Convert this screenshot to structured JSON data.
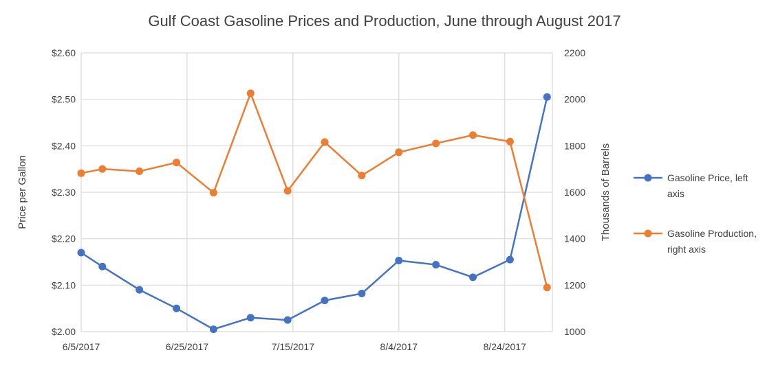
{
  "chart_data": {
    "type": "line",
    "title": "Gulf Coast Gasoline Prices and Production, June through August 2017",
    "x_tick_labels": [
      "6/5/2017",
      "6/25/2017",
      "7/15/2017",
      "8/4/2017",
      "8/24/2017"
    ],
    "x_range_days": [
      0,
      89
    ],
    "left_axis": {
      "label": "Price per Gallon",
      "range": [
        2.0,
        2.6
      ],
      "tick_labels": [
        "$2.00",
        "$2.10",
        "$2.20",
        "$2.30",
        "$2.40",
        "$2.50",
        "$2.60"
      ],
      "tick_values": [
        2.0,
        2.1,
        2.2,
        2.3,
        2.4,
        2.5,
        2.6
      ]
    },
    "right_axis": {
      "label": "Thousands of Barrels",
      "range": [
        1000,
        2200
      ],
      "tick_labels": [
        "1000",
        "1200",
        "1400",
        "1600",
        "1800",
        "2000",
        "2200"
      ],
      "tick_values": [
        1000,
        1200,
        1400,
        1600,
        1800,
        2000,
        2200
      ]
    },
    "x_dates": [
      "6/5/2017",
      "6/9/2017",
      "6/16/2017",
      "6/23/2017",
      "6/30/2017",
      "7/7/2017",
      "7/14/2017",
      "7/21/2017",
      "7/28/2017",
      "8/4/2017",
      "8/11/2017",
      "8/18/2017",
      "8/25/2017",
      "9/1/2017"
    ],
    "series": [
      {
        "name": "Gasoline Price, left axis",
        "axis": "left",
        "color": "#4472c4",
        "values": [
          2.17,
          2.14,
          2.09,
          2.05,
          2.005,
          2.03,
          2.025,
          2.067,
          2.082,
          2.153,
          2.144,
          2.117,
          2.155,
          2.505
        ]
      },
      {
        "name": "Gasoline Production, right axis",
        "axis": "right",
        "color": "#ed7d31",
        "values": [
          1682,
          1700,
          1690,
          1728,
          1598,
          2026,
          1606,
          1816,
          1672,
          1772,
          1810,
          1846,
          1818,
          1190
        ]
      }
    ],
    "legend": {
      "position": "right",
      "entries": [
        [
          "Gasoline Price, left",
          "axis"
        ],
        [
          "Gasoline Production,",
          "right axis"
        ]
      ]
    },
    "grid": true
  }
}
